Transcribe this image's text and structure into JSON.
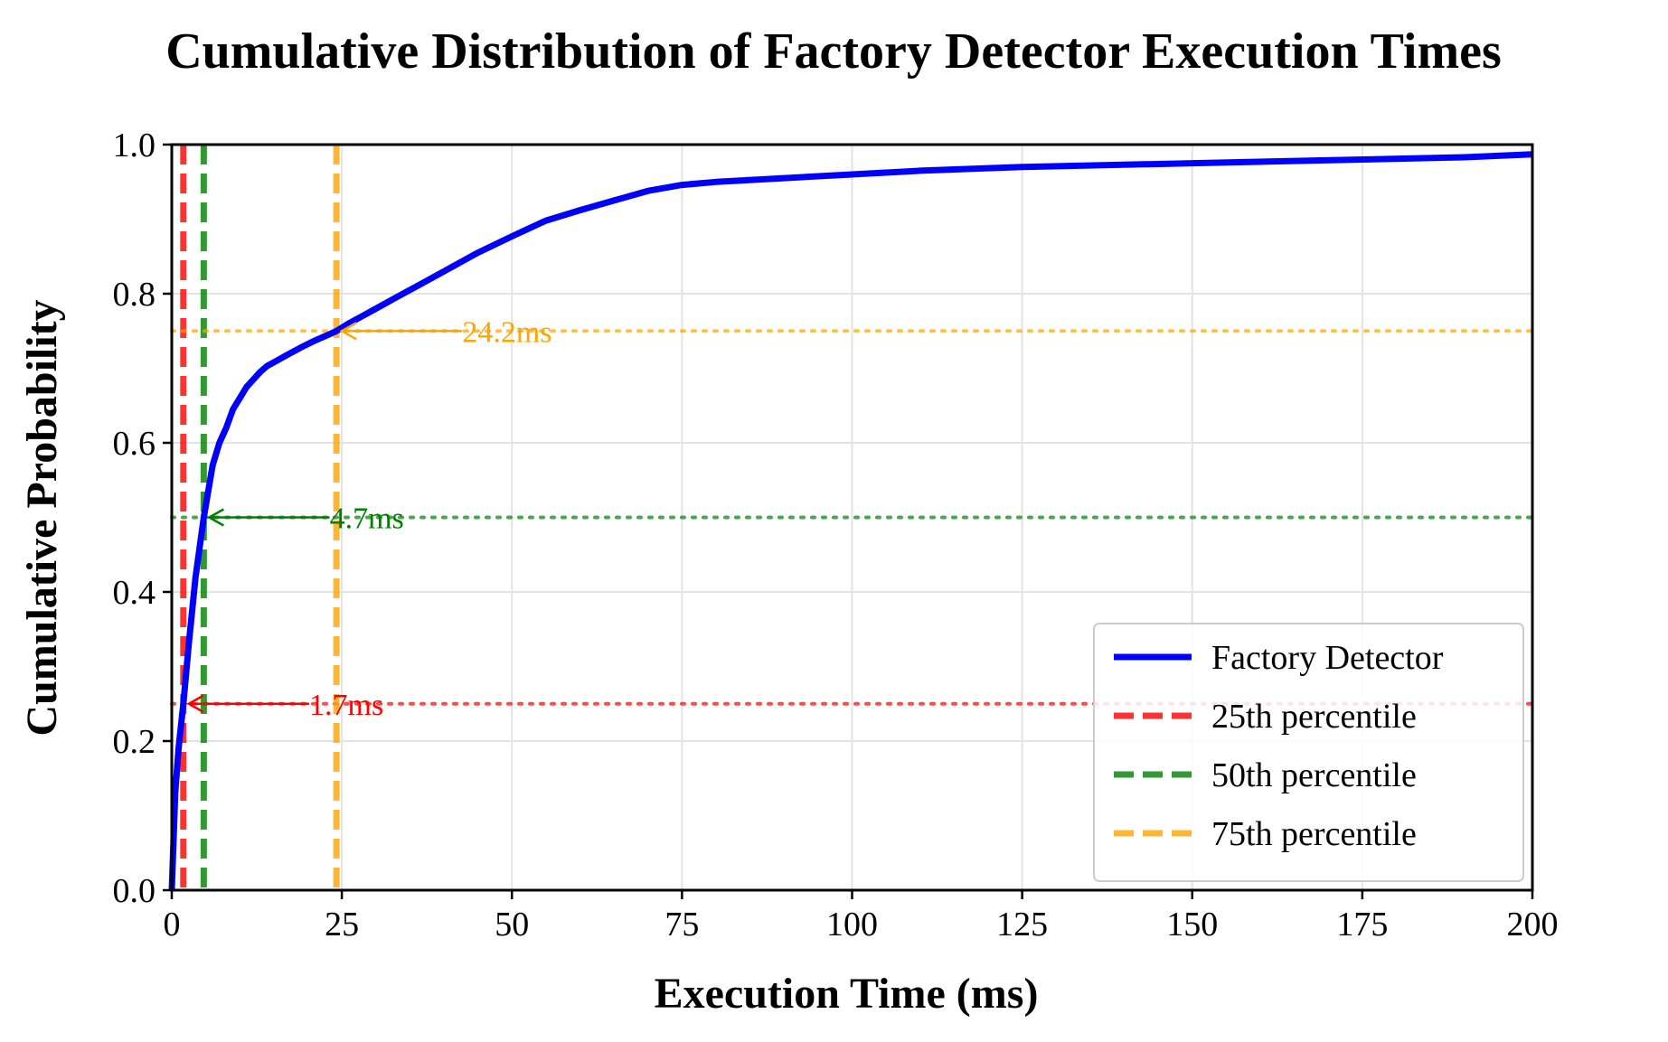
{
  "chart_data": {
    "type": "line",
    "title": "Cumulative Distribution of Factory Detector Execution Times",
    "xlabel": "Execution Time (ms)",
    "ylabel": "Cumulative Probability",
    "xlim": [
      0,
      200
    ],
    "ylim": [
      0,
      1.0
    ],
    "xticks": [
      0,
      25,
      50,
      75,
      100,
      125,
      150,
      175,
      200
    ],
    "xtick_labels": [
      "0",
      "25",
      "50",
      "75",
      "100",
      "125",
      "150",
      "175",
      "200"
    ],
    "yticks": [
      0.0,
      0.2,
      0.4,
      0.6,
      0.8,
      1.0
    ],
    "ytick_labels": [
      "0.0",
      "0.2",
      "0.4",
      "0.6",
      "0.8",
      "1.0"
    ],
    "grid": true,
    "legend_position": "lower-right",
    "series": [
      {
        "name": "Factory Detector",
        "color": "#0000ff",
        "x": [
          0,
          0.5,
          1,
          1.7,
          2.5,
          3.5,
          4.7,
          6,
          7,
          8,
          9,
          10,
          11,
          12,
          13,
          14,
          15,
          17,
          19,
          21,
          23,
          24.2,
          26,
          28,
          30,
          33,
          36,
          40,
          45,
          50,
          55,
          60,
          65,
          70,
          75,
          80,
          90,
          100,
          110,
          125,
          150,
          175,
          190,
          200
        ],
        "y": [
          0.0,
          0.13,
          0.19,
          0.25,
          0.33,
          0.42,
          0.5,
          0.57,
          0.6,
          0.62,
          0.645,
          0.66,
          0.675,
          0.685,
          0.695,
          0.703,
          0.708,
          0.718,
          0.728,
          0.737,
          0.745,
          0.75,
          0.76,
          0.77,
          0.78,
          0.795,
          0.81,
          0.83,
          0.855,
          0.877,
          0.898,
          0.912,
          0.925,
          0.938,
          0.946,
          0.95,
          0.955,
          0.96,
          0.965,
          0.97,
          0.975,
          0.98,
          0.983,
          0.987
        ]
      }
    ],
    "percentiles": [
      {
        "name": "25th percentile",
        "x": 1.7,
        "y": 0.25,
        "label": "1.7ms",
        "color": "#ff0000"
      },
      {
        "name": "50th percentile",
        "x": 4.7,
        "y": 0.5,
        "label": "4.7ms",
        "color": "#008000"
      },
      {
        "name": "75th percentile",
        "x": 24.2,
        "y": 0.75,
        "label": "24.2ms",
        "color": "#ffa500"
      }
    ]
  }
}
